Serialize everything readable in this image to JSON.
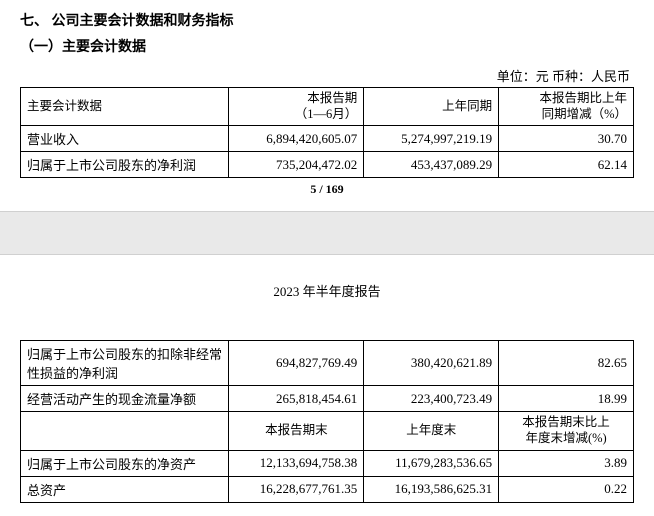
{
  "top": {
    "heading": "七、 公司主要会计数据和财务指标",
    "subheading": "（一）主要会计数据",
    "unit_line": "单位：元   币种：人民币",
    "columns": {
      "c1": "主要会计数据",
      "c2_line1": "本报告期",
      "c2_line2": "（1—6月）",
      "c3": "上年同期",
      "c4_line1": "本报告期比上年",
      "c4_line2": "同期增减（%）"
    },
    "rows": [
      {
        "label": "营业收入",
        "curr": "6,894,420,605.07",
        "prev": "5,274,997,219.19",
        "pct": "30.70"
      },
      {
        "label": "归属于上市公司股东的净利润",
        "curr": "735,204,472.02",
        "prev": "453,437,089.29",
        "pct": "62.14"
      }
    ],
    "page_footer": "5 / 169"
  },
  "bottom": {
    "report_title": "2023 年半年度报告",
    "rows1": [
      {
        "label": "归属于上市公司股东的扣除非经常性损益的净利润",
        "curr": "694,827,769.49",
        "prev": "380,420,621.89",
        "pct": "82.65"
      },
      {
        "label": "经营活动产生的现金流量净额",
        "curr": "265,818,454.61",
        "prev": "223,400,723.49",
        "pct": "18.99"
      }
    ],
    "columns2": {
      "c1": "",
      "c2": "本报告期末",
      "c3": "上年度末",
      "c4_line1": "本报告期末比上",
      "c4_line2": "年度末增减(%)"
    },
    "rows2": [
      {
        "label": "归属于上市公司股东的净资产",
        "curr": "12,133,694,758.38",
        "prev": "11,679,283,536.65",
        "pct": "3.89"
      },
      {
        "label": "总资产",
        "curr": "16,228,677,761.35",
        "prev": "16,193,586,625.31",
        "pct": "0.22"
      }
    ]
  }
}
